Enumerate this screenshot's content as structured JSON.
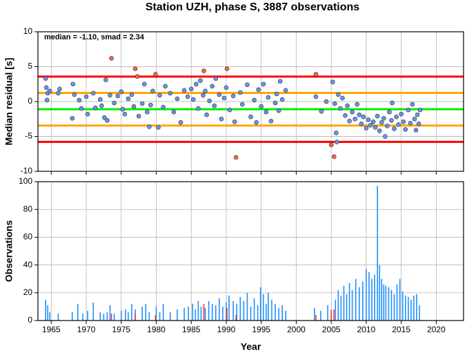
{
  "chart_data": [
    {
      "type": "scatter",
      "title": "Station UZH, phase S, 3887 observations",
      "annotation": "median = -1.10, smad = 2.34",
      "ylabel": "Median residual [s]",
      "xlim": [
        1963.1,
        2023.9
      ],
      "ylim": [
        -10,
        10
      ],
      "xticks": [
        1965,
        1970,
        1975,
        1980,
        1985,
        1990,
        1995,
        2000,
        2005,
        2010,
        2015,
        2020
      ],
      "yticks": [
        10,
        5,
        0,
        -5,
        -10
      ],
      "grid": true,
      "reference_lines": [
        {
          "value": 3.58,
          "color": "#ff0000"
        },
        {
          "value": 1.24,
          "color": "#ffa500"
        },
        {
          "value": -1.1,
          "color": "#00ee00"
        },
        {
          "value": -3.44,
          "color": "#ffa500"
        },
        {
          "value": -5.78,
          "color": "#ff0000"
        }
      ],
      "series": [
        {
          "color": "#6495ed",
          "x": [
            1964.2,
            1964.5,
            1964.3,
            1964.4,
            1964.8,
            1966,
            1966.2,
            1968,
            1968.1,
            1968.3,
            1969,
            1969.3,
            1970,
            1970.2,
            1971,
            1971.3,
            1972,
            1972.2,
            1972.8,
            1972.6,
            1973,
            1973.4,
            1974,
            1974.5,
            1975,
            1975.2,
            1975.5,
            1976,
            1976.5,
            1976.8,
            1977.5,
            1978,
            1978.3,
            1978.7,
            1979,
            1979.5,
            1979.2,
            1980.3,
            1980.5,
            1981,
            1981.3,
            1982,
            1982.5,
            1983,
            1983.5,
            1984,
            1984.5,
            1985,
            1985.3,
            1985.7,
            1986,
            1986.3,
            1986.7,
            1987,
            1987.2,
            1987.6,
            1988,
            1988.3,
            1988.5,
            1989,
            1989.3,
            1989.7,
            1990,
            1990.5,
            1991,
            1991.2,
            1992,
            1992.3,
            1993,
            1993.5,
            1994,
            1994.3,
            1994.6,
            1995,
            1995.3,
            1995.7,
            1996,
            1996.4,
            1997,
            1997.2,
            1997.5,
            1997.7,
            1998,
            1998.5,
            2002.8,
            2003.6,
            2004.3,
            2005.2,
            2005.5,
            2005.7,
            2005.8,
            2006,
            2006.3,
            2006.6,
            2007,
            2007.3,
            2007.6,
            2008,
            2008.4,
            2008.7,
            2009,
            2009.3,
            2009.6,
            2010,
            2010.3,
            2010.6,
            2011,
            2011.3,
            2011.6,
            2011.9,
            2012.2,
            2012.5,
            2012.7,
            2013,
            2013.3,
            2013.6,
            2014,
            2013.7,
            2014.3,
            2014.6,
            2015,
            2015.3,
            2015.6,
            2016,
            2016.3,
            2016.6,
            2016.9,
            2017.1,
            2017.3,
            2017.5,
            2017.7
          ],
          "values": [
            3.3,
            1.2,
            2.0,
            0.2,
            1.5,
            1.2,
            1.8,
            -2.4,
            2.5,
            1.0,
            0.2,
            -1.0,
            0.7,
            -1.8,
            1.2,
            -0.9,
            0.3,
            -0.6,
            3.1,
            -2.3,
            -2.7,
            0.9,
            -0.2,
            0.8,
            1.4,
            -1.1,
            -1.8,
            0.4,
            1.0,
            -0.7,
            -2.1,
            -0.3,
            2.5,
            -1.5,
            -3.6,
            1.5,
            -0.5,
            -3.7,
            0.9,
            -0.8,
            2.2,
            1.2,
            -1.5,
            0.4,
            -3.0,
            1.6,
            0.7,
            1.8,
            0.3,
            2.5,
            -1.0,
            3.0,
            0.9,
            1.5,
            -1.9,
            0.1,
            2.2,
            -0.6,
            3.3,
            1.0,
            -2.5,
            0.5,
            2.0,
            -1.2,
            0.8,
            -2.9,
            1.3,
            -0.4,
            2.4,
            -2.2,
            0.2,
            -3.0,
            1.7,
            -0.7,
            2.5,
            -1.5,
            0.6,
            -2.8,
            -0.2,
            1.1,
            -1.3,
            2.9,
            0.3,
            1.6,
            0.7,
            -1.4,
            0.0,
            2.8,
            -0.3,
            -4.5,
            -5.8,
            1.0,
            -1.0,
            0.5,
            -2.0,
            -0.6,
            -2.8,
            -1.5,
            -2.5,
            -0.4,
            -1.9,
            -3.2,
            -2.2,
            -3.8,
            -2.6,
            -3.4,
            -2.9,
            -3.7,
            -2.1,
            -4.2,
            -3.0,
            -2.4,
            -5.0,
            -3.5,
            -1.5,
            -2.7,
            -3.9,
            -0.2,
            -2.2,
            -3.3,
            -1.8,
            -2.9,
            -4.0,
            -1.2,
            -3.1,
            -0.4,
            -2.5,
            -4.1,
            -1.9,
            -3.2,
            -1.2
          ]
        },
        {
          "color": "#ff6347",
          "x": [
            1973.6,
            1977,
            1977.3,
            1979.9,
            1986.8,
            1990.1,
            1991.4,
            2002.8,
            2005,
            2005.4
          ],
          "values": [
            6.2,
            4.7,
            3.6,
            3.9,
            4.4,
            4.7,
            -8.0,
            3.9,
            -6.2,
            -7.9
          ]
        }
      ]
    },
    {
      "type": "bar",
      "ylabel": "Observations",
      "xlabel": "Year",
      "xlim": [
        1963.1,
        2023.9
      ],
      "ylim": [
        0,
        100
      ],
      "xticks": [
        1965,
        1970,
        1975,
        1980,
        1985,
        1990,
        1995,
        2000,
        2005,
        2010,
        2015,
        2020
      ],
      "yticks": [
        0,
        20,
        40,
        60,
        80,
        100
      ],
      "grid": true,
      "series": [
        {
          "color": "#1e90ff",
          "x": [
            1964.2,
            1964.5,
            1964.8,
            1966,
            1968,
            1968.8,
            1969.5,
            1970.2,
            1971,
            1972,
            1972.5,
            1973,
            1973.4,
            1974,
            1975,
            1975.6,
            1976,
            1976.5,
            1977,
            1978,
            1978.5,
            1979,
            1980,
            1980.5,
            1981,
            1982,
            1983,
            1984,
            1984.6,
            1985.2,
            1985.6,
            1986,
            1986.4,
            1987,
            1987.5,
            1988,
            1988.5,
            1989,
            1989.5,
            1990,
            1990.4,
            1991,
            1991.5,
            1992,
            1992.5,
            1993,
            1993.5,
            1994,
            1994.5,
            1994.9,
            1995.3,
            1995.7,
            1996,
            1996.5,
            1997,
            1997.5,
            1998,
            1998.5,
            2002.6,
            2003.5,
            2004.5,
            2005,
            2005.6,
            2006,
            2006.4,
            2006.8,
            2007.2,
            2007.6,
            2008,
            2008.5,
            2009,
            2009.5,
            2010,
            2010.4,
            2010.8,
            2011.2,
            2011.6,
            2011.9,
            2012.2,
            2012.5,
            2012.8,
            2013.2,
            2013.6,
            2014,
            2014.4,
            2014.8,
            2015.2,
            2015.6,
            2016,
            2016.4,
            2016.8,
            2017.2,
            2017.6
          ],
          "values": [
            15,
            11,
            6,
            5,
            6,
            12,
            5,
            7,
            13,
            6,
            5,
            6,
            11,
            5,
            7,
            8,
            6,
            12,
            8,
            10,
            12,
            6,
            10,
            6,
            12,
            6,
            8,
            9,
            10,
            12,
            8,
            14,
            10,
            9,
            14,
            12,
            11,
            16,
            10,
            13,
            18,
            14,
            12,
            17,
            14,
            20,
            10,
            16,
            11,
            24,
            19,
            12,
            20,
            15,
            12,
            9,
            11,
            7,
            9,
            7,
            11,
            8,
            15,
            22,
            18,
            25,
            19,
            27,
            22,
            30,
            24,
            28,
            37,
            35,
            30,
            33,
            97,
            40,
            30,
            26,
            25,
            24,
            22,
            19,
            26,
            30,
            21,
            18,
            17,
            15,
            18,
            19,
            11
          ]
        },
        {
          "color": "#ff3030",
          "x": [
            1973.6,
            1977,
            1979.9,
            1986.8,
            1990.1,
            1991.4,
            2002.8,
            2005,
            2005.4
          ],
          "values": [
            5,
            5,
            4,
            12,
            9,
            4,
            4,
            7,
            8
          ]
        }
      ]
    }
  ]
}
